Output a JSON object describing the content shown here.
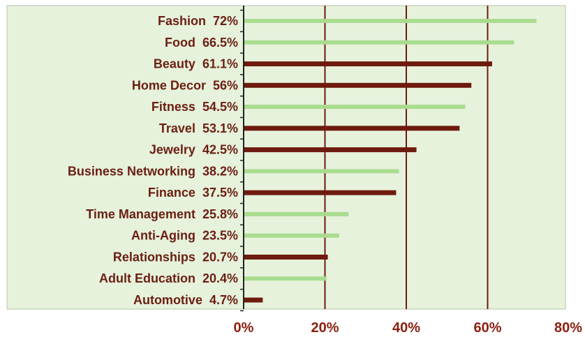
{
  "chart_data": {
    "type": "bar",
    "orientation": "horizontal",
    "title": "",
    "xlabel": "",
    "ylabel": "",
    "xlim": [
      0,
      80
    ],
    "x_ticks": [
      "0%",
      "20%",
      "40%",
      "60%",
      "80%"
    ],
    "grid": "vertical lines at 20%, 40%, 60%",
    "colors": {
      "light": "#a9dc8f",
      "dark": "#6e1a0e",
      "plot_background": "#e6f2dc",
      "grid": "#6e1a0e",
      "text": "#6b1e12"
    },
    "categories": [
      "Fashion",
      "Food",
      "Beauty",
      "Home Decor",
      "Fitness",
      "Travel",
      "Jewelry",
      "Business Networking",
      "Finance",
      "Time Management",
      "Anti-Aging",
      "Relationships",
      "Adult Education",
      "Automotive"
    ],
    "values": [
      72,
      66.5,
      61.1,
      56,
      54.5,
      53.1,
      42.5,
      38.2,
      37.5,
      25.8,
      23.5,
      20.7,
      20.4,
      4.7
    ],
    "value_labels": [
      "72%",
      "66.5%",
      "61.1%",
      "56%",
      "54.5%",
      "53.1%",
      "42.5%",
      "38.2%",
      "37.5%",
      "25.8%",
      "23.5%",
      "20.7%",
      "20.4%",
      "4.7%"
    ],
    "bar_colors": [
      "light",
      "light",
      "dark",
      "dark",
      "light",
      "dark",
      "dark",
      "light",
      "dark",
      "light",
      "light",
      "dark",
      "light",
      "dark"
    ]
  }
}
